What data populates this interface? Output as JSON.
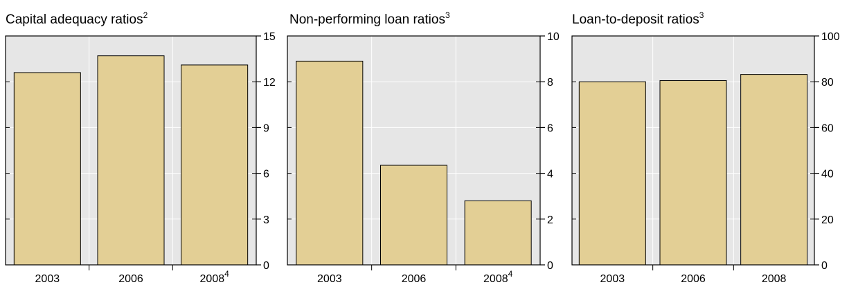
{
  "colors": {
    "plot_background": "#e6e6e6",
    "gridline": "#ffffff",
    "bar_fill": "#e3cf95",
    "bar_stroke": "#000000",
    "axis": "#000000"
  },
  "chart_data": [
    {
      "type": "bar",
      "title": "Capital adequacy ratios",
      "title_superscript": "2",
      "categories": [
        "2003",
        "2006",
        "2008"
      ],
      "category_superscripts": [
        "",
        "",
        "4"
      ],
      "values": [
        12.6,
        13.7,
        13.1
      ],
      "ylim": [
        0,
        15
      ],
      "yticks": [
        0,
        3,
        6,
        9,
        12,
        15
      ],
      "y_axis_side": "right",
      "grid": true
    },
    {
      "type": "bar",
      "title": "Non-performing loan ratios",
      "title_superscript": "3",
      "categories": [
        "2003",
        "2006",
        "2008"
      ],
      "category_superscripts": [
        "",
        "",
        "4"
      ],
      "values": [
        8.9,
        4.35,
        2.8
      ],
      "ylim": [
        0,
        10
      ],
      "yticks": [
        0,
        2,
        4,
        6,
        8,
        10
      ],
      "y_axis_side": "right",
      "grid": true
    },
    {
      "type": "bar",
      "title": "Loan-to-deposit ratios",
      "title_superscript": "3",
      "categories": [
        "2003",
        "2006",
        "2008"
      ],
      "category_superscripts": [
        "",
        "",
        ""
      ],
      "values": [
        80,
        80.5,
        83.2
      ],
      "ylim": [
        0,
        100
      ],
      "yticks": [
        0,
        20,
        40,
        60,
        80,
        100
      ],
      "y_axis_side": "right",
      "grid": true
    }
  ]
}
